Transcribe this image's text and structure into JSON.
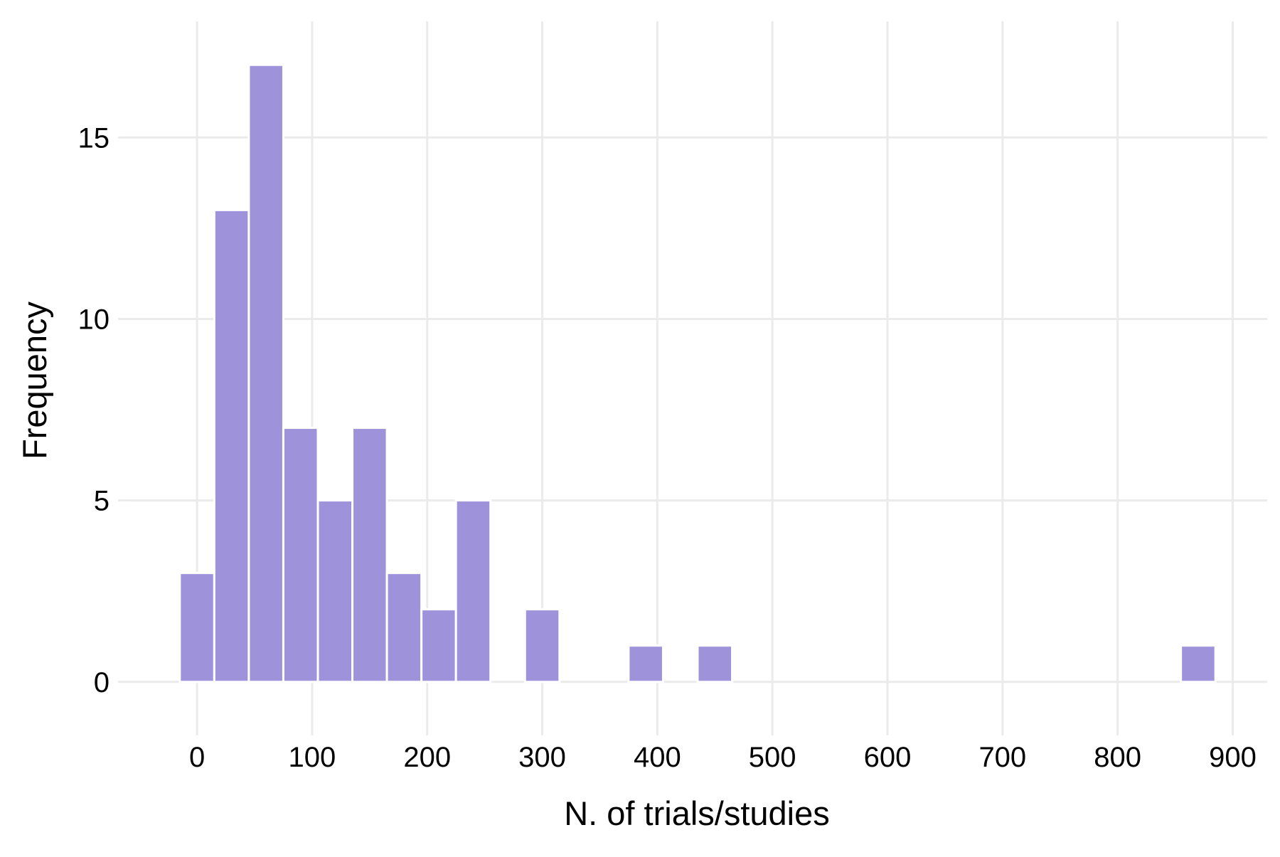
{
  "chart_data": {
    "type": "bar",
    "title": "",
    "xlabel": "N. of trials/studies",
    "ylabel": "Frequency",
    "bin_width": 30,
    "bin_centers": [
      0,
      30,
      60,
      90,
      120,
      150,
      180,
      210,
      240,
      300,
      390,
      450,
      870
    ],
    "values": [
      3,
      13,
      17,
      7,
      5,
      7,
      3,
      2,
      5,
      2,
      1,
      1,
      1
    ],
    "xlim": [
      -60,
      930
    ],
    "ylim": [
      -1.2,
      18.2
    ],
    "xticks": [
      0,
      100,
      200,
      300,
      400,
      500,
      600,
      700,
      800,
      900
    ],
    "yticks": [
      0,
      5,
      10,
      15
    ],
    "grid": true,
    "legend": "none",
    "colors": {
      "bar_fill": "#9e93db",
      "bar_stroke": "#ffffff",
      "grid": "#ebebeb",
      "tick": "#ebebeb",
      "background": "#ffffff"
    }
  }
}
